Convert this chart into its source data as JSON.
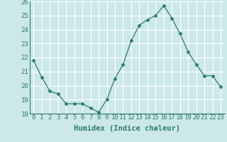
{
  "x": [
    0,
    1,
    2,
    3,
    4,
    5,
    6,
    7,
    8,
    9,
    10,
    11,
    12,
    13,
    14,
    15,
    16,
    17,
    18,
    19,
    20,
    21,
    22,
    23
  ],
  "y": [
    21.8,
    20.6,
    19.6,
    19.4,
    18.7,
    18.7,
    18.7,
    18.4,
    18.1,
    19.0,
    20.5,
    21.5,
    23.2,
    24.3,
    24.7,
    25.0,
    25.7,
    24.8,
    23.7,
    22.4,
    21.5,
    20.7,
    20.7,
    19.9
  ],
  "xlabel": "Humidex (Indice chaleur)",
  "ylim": [
    18,
    26
  ],
  "xlim": [
    -0.5,
    23.5
  ],
  "yticks": [
    18,
    19,
    20,
    21,
    22,
    23,
    24,
    25,
    26
  ],
  "xticks": [
    0,
    1,
    2,
    3,
    4,
    5,
    6,
    7,
    8,
    9,
    10,
    11,
    12,
    13,
    14,
    15,
    16,
    17,
    18,
    19,
    20,
    21,
    22,
    23
  ],
  "line_color": "#2e7d6e",
  "marker": "D",
  "marker_size": 2.5,
  "bg_color": "#cce8e8",
  "plot_bg_color": "#cce8e8",
  "grid_color": "#ffffff",
  "tick_color": "#2e7d6e",
  "label_fontsize": 7.5,
  "tick_fontsize": 6.5
}
